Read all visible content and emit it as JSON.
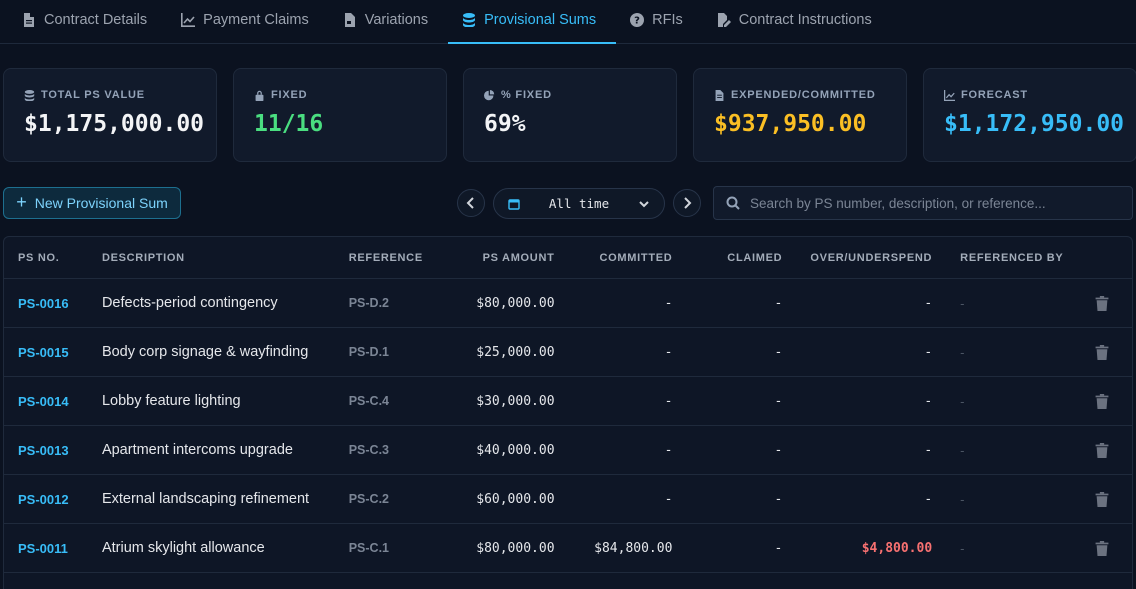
{
  "tabs": [
    {
      "label": "Contract Details",
      "icon": "document-icon",
      "active": false
    },
    {
      "label": "Payment Claims",
      "icon": "chart-line-icon",
      "active": false
    },
    {
      "label": "Variations",
      "icon": "file-icon",
      "active": false
    },
    {
      "label": "Provisional Sums",
      "icon": "database-icon",
      "active": true
    },
    {
      "label": "RFIs",
      "icon": "question-icon",
      "active": false
    },
    {
      "label": "Contract Instructions",
      "icon": "edit-document-icon",
      "active": false
    }
  ],
  "cards": [
    {
      "label": "TOTAL PS VALUE",
      "value": "$1,175,000.00",
      "color": "#f3f4f6",
      "icon": "database-icon"
    },
    {
      "label": "FIXED",
      "value": "11/16",
      "color": "#4ade80",
      "icon": "lock-icon"
    },
    {
      "label": "% FIXED",
      "value": "69%",
      "color": "#f3f4f6",
      "icon": "pie-chart-icon"
    },
    {
      "label": "EXPENDED/COMMITTED",
      "value": "$937,950.00",
      "color": "#fbbf24",
      "icon": "receipt-icon"
    },
    {
      "label": "FORECAST",
      "value": "$1,172,950.00",
      "color": "#38bdf8",
      "icon": "chart-line-icon"
    }
  ],
  "toolbar": {
    "new_label": "New Provisional Sum",
    "range_label": "All time",
    "search_placeholder": "Search by PS number, description, or reference..."
  },
  "table": {
    "headers": [
      "PS NO.",
      "DESCRIPTION",
      "REFERENCE",
      "PS AMOUNT",
      "COMMITTED",
      "CLAIMED",
      "OVER/UNDERSPEND",
      "REFERENCED BY"
    ],
    "rows": [
      {
        "ps_no": "PS-0016",
        "description": "Defects-period contingency",
        "reference": "PS-D.2",
        "amount": "$80,000.00",
        "committed": "-",
        "claimed": "-",
        "over": "-",
        "over_negative": false,
        "referenced_by": "-"
      },
      {
        "ps_no": "PS-0015",
        "description": "Body corp signage & wayfinding",
        "reference": "PS-D.1",
        "amount": "$25,000.00",
        "committed": "-",
        "claimed": "-",
        "over": "-",
        "over_negative": false,
        "referenced_by": "-"
      },
      {
        "ps_no": "PS-0014",
        "description": "Lobby feature lighting",
        "reference": "PS-C.4",
        "amount": "$30,000.00",
        "committed": "-",
        "claimed": "-",
        "over": "-",
        "over_negative": false,
        "referenced_by": "-"
      },
      {
        "ps_no": "PS-0013",
        "description": "Apartment intercoms upgrade",
        "reference": "PS-C.3",
        "amount": "$40,000.00",
        "committed": "-",
        "claimed": "-",
        "over": "-",
        "over_negative": false,
        "referenced_by": "-"
      },
      {
        "ps_no": "PS-0012",
        "description": "External landscaping refinement",
        "reference": "PS-C.2",
        "amount": "$60,000.00",
        "committed": "-",
        "claimed": "-",
        "over": "-",
        "over_negative": false,
        "referenced_by": "-"
      },
      {
        "ps_no": "PS-0011",
        "description": "Atrium skylight allowance",
        "reference": "PS-C.1",
        "amount": "$80,000.00",
        "committed": "$84,800.00",
        "claimed": "-",
        "over": "$4,800.00",
        "over_negative": true,
        "referenced_by": "-"
      }
    ]
  }
}
